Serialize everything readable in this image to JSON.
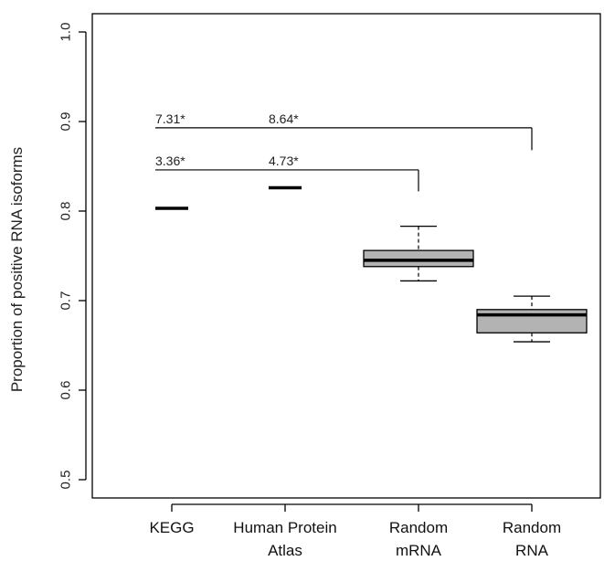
{
  "chart_data": {
    "type": "box",
    "title": "",
    "xlabel": "",
    "ylabel": "Proportion of positive RNA isoforms",
    "ylim": [
      0.5,
      1.0
    ],
    "yticks": [
      "0.5",
      "0.6",
      "0.7",
      "0.8",
      "0.9",
      "1.0"
    ],
    "grid": false,
    "categories": [
      {
        "line1": "KEGG",
        "line2": ""
      },
      {
        "line1": "Human Protein",
        "line2": "Atlas"
      },
      {
        "line1": "Random",
        "line2": "mRNA"
      },
      {
        "line1": "Random",
        "line2": "RNA"
      }
    ],
    "points": [
      {
        "category": "KEGG",
        "value": 0.803
      },
      {
        "category": "Human Protein Atlas",
        "value": 0.826
      }
    ],
    "boxes": [
      {
        "category": "Random mRNA",
        "whisker_low": 0.722,
        "q1": 0.738,
        "median": 0.745,
        "q3": 0.756,
        "whisker_high": 0.783
      },
      {
        "category": "Random RNA",
        "whisker_low": 0.654,
        "q1": 0.664,
        "median": 0.684,
        "q3": 0.69,
        "whisker_high": 0.705
      }
    ],
    "box_fill": "#b3b3b3",
    "annotations": [
      {
        "bracket_y": 0.893,
        "target_category": 3,
        "drop_to": 0.868,
        "labels": [
          {
            "text": "7.31*",
            "category": 0
          },
          {
            "text": "8.64*",
            "category": 1
          }
        ]
      },
      {
        "bracket_y": 0.846,
        "target_category": 2,
        "drop_to": 0.822,
        "labels": [
          {
            "text": "3.36*",
            "category": 0
          },
          {
            "text": "4.73*",
            "category": 1
          }
        ]
      }
    ]
  }
}
